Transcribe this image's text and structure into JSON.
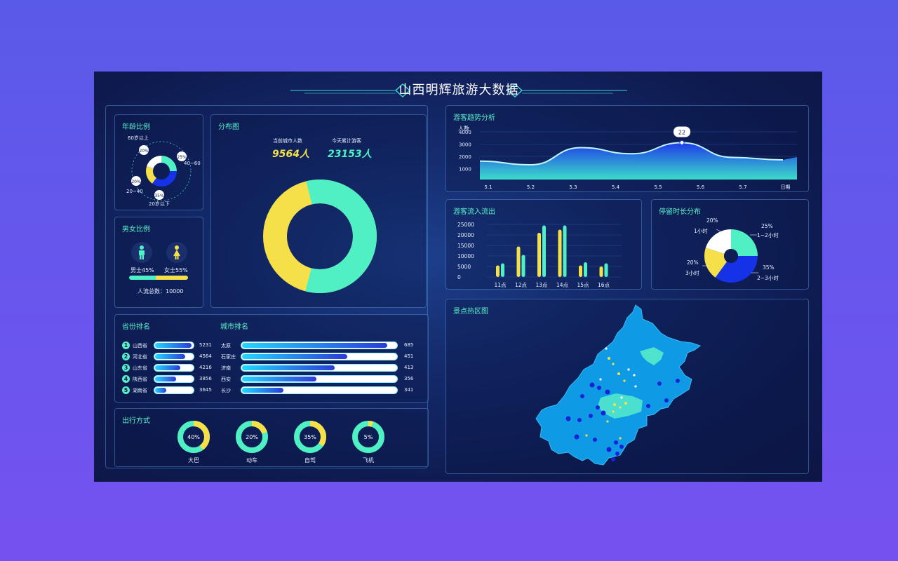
{
  "title": "山西明辉旅游大数据",
  "age": {
    "title": "年龄比例",
    "labels": [
      "60岁以上",
      "40~60",
      "20~40",
      "20岁以下"
    ],
    "pct": [
      "20%",
      "25%",
      "20%",
      "35%"
    ]
  },
  "gender": {
    "title": "男女比例",
    "male": "男士45%",
    "female": "女士55%",
    "male_share": 0.45,
    "total": "人流总数：10000"
  },
  "distribution": {
    "title": "分布图",
    "current_label": "当前城市人数",
    "current_value": "9564人",
    "today_label": "今天累计游客",
    "today_value": "23153人"
  },
  "province": {
    "title": "省份排名",
    "rows": [
      {
        "rank": "1",
        "name": "山西省",
        "value": "5231",
        "share": 0.96
      },
      {
        "rank": "2",
        "name": "河北省",
        "value": "4564",
        "share": 0.8
      },
      {
        "rank": "3",
        "name": "山东省",
        "value": "4216",
        "share": 0.66
      },
      {
        "rank": "4",
        "name": "陕西省",
        "value": "3856",
        "share": 0.55
      },
      {
        "rank": "5",
        "name": "湖南省",
        "value": "3645",
        "share": 0.3
      }
    ]
  },
  "city": {
    "title": "城市排名",
    "rows": [
      {
        "name": "太原",
        "value": "685",
        "share": 0.94
      },
      {
        "name": "石家庄",
        "value": "451",
        "share": 0.68
      },
      {
        "name": "济南",
        "value": "413",
        "share": 0.6
      },
      {
        "name": "西安",
        "value": "356",
        "share": 0.48
      },
      {
        "name": "长沙",
        "value": "341",
        "share": 0.27
      }
    ]
  },
  "travel": {
    "title": "出行方式",
    "items": [
      {
        "pct": "40%",
        "label": "大巴",
        "share": 0.4
      },
      {
        "pct": "20%",
        "label": "动车",
        "share": 0.2
      },
      {
        "pct": "35%",
        "label": "自驾",
        "share": 0.35
      },
      {
        "pct": "5%",
        "label": "飞机",
        "share": 0.05
      }
    ]
  },
  "trend": {
    "title": "游客趋势分析",
    "y_unit": "人数",
    "y_ticks": [
      "4000",
      "3000",
      "2000",
      "1000"
    ],
    "x_ticks": [
      "5.1",
      "5.2",
      "5.3",
      "5.4",
      "5.5",
      "5.6",
      "5.7",
      "日期"
    ],
    "tooltip": "22"
  },
  "flow": {
    "title": "游客流入流出",
    "y_ticks": [
      "25000",
      "20000",
      "15000",
      "10000",
      "5000",
      "0"
    ],
    "categories": [
      "11点",
      "12点",
      "13点",
      "14点",
      "15点",
      "16点"
    ]
  },
  "stay": {
    "title": "停留时长分布",
    "items": [
      {
        "pct": "20%",
        "label": "1小时"
      },
      {
        "pct": "25%",
        "label": "1~2小时"
      },
      {
        "pct": "35%",
        "label": "2~3小时"
      },
      {
        "pct": "20%",
        "label": "3小时"
      }
    ]
  },
  "heatmap": {
    "title": "景点热区图"
  },
  "chart_data": [
    {
      "type": "area",
      "title": "游客趋势分析",
      "ylabel": "人数",
      "x": [
        "5.1",
        "5.2",
        "5.3",
        "5.4",
        "5.5",
        "5.6",
        "5.7"
      ],
      "ylim": [
        0,
        4000
      ],
      "values": [
        1500,
        1200,
        2600,
        2100,
        3000,
        1800,
        1600
      ],
      "colors": {
        "fill_top": "#1f3cf0",
        "fill_bottom": "#3ee6d0",
        "line": "#bff6ff"
      }
    },
    {
      "type": "bar",
      "title": "游客流入流出",
      "categories": [
        "11点",
        "12点",
        "13点",
        "14点",
        "15点",
        "16点"
      ],
      "ylim": [
        0,
        25000
      ],
      "series": [
        {
          "values": [
            5500,
            14500,
            21000,
            22500,
            5500,
            5000
          ],
          "color": "#f5e04a"
        },
        {
          "values": [
            6500,
            10500,
            24500,
            24500,
            7000,
            6500
          ],
          "color": "#4ef0c4"
        }
      ]
    },
    {
      "type": "pie",
      "title": "停留时长分布",
      "labels": [
        "1~2小时",
        "2~3小时",
        "3小时",
        "1小时"
      ],
      "values": [
        25,
        35,
        20,
        20
      ],
      "colors": [
        "#4ef0c4",
        "#1532e8",
        "#f5e04a",
        "#ffffff"
      ]
    },
    {
      "type": "pie",
      "title": "分布图",
      "values": [
        58,
        42
      ],
      "colors": [
        "#4ef0c4",
        "#f5e04a"
      ]
    }
  ]
}
